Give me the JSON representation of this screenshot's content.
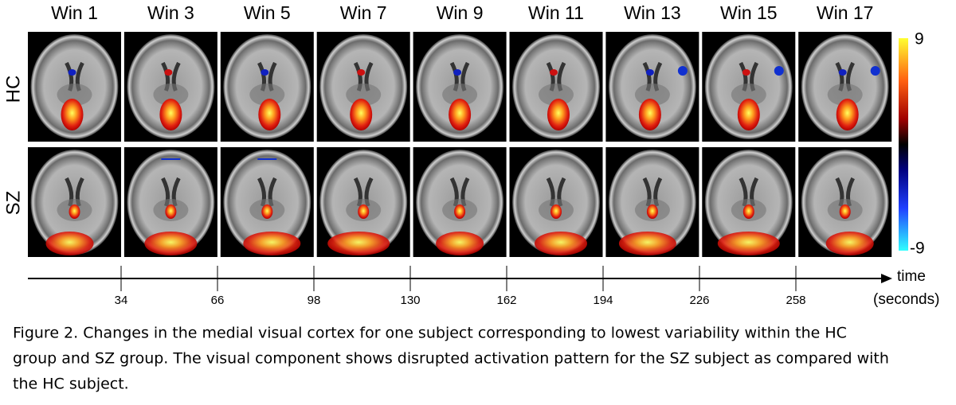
{
  "figure": {
    "columns": [
      "Win 1",
      "Win 3",
      "Win 5",
      "Win 7",
      "Win 9",
      "Win 11",
      "Win 13",
      "Win 15",
      "Win 17"
    ],
    "rows": [
      "HC",
      "SZ"
    ],
    "colorbar": {
      "max": 9,
      "min": -9
    },
    "time_axis": {
      "label": "time",
      "unit": "(seconds)",
      "ticks": [
        34,
        66,
        98,
        130,
        162,
        194,
        226,
        258
      ]
    },
    "caption": [
      "Figure 2. Changes in the medial visual cortex for one subject corresponding to lowest variability within the HC",
      "group and SZ group. The visual component shows disrupted activation pattern for the SZ subject as compared with",
      "the HC subject."
    ]
  }
}
